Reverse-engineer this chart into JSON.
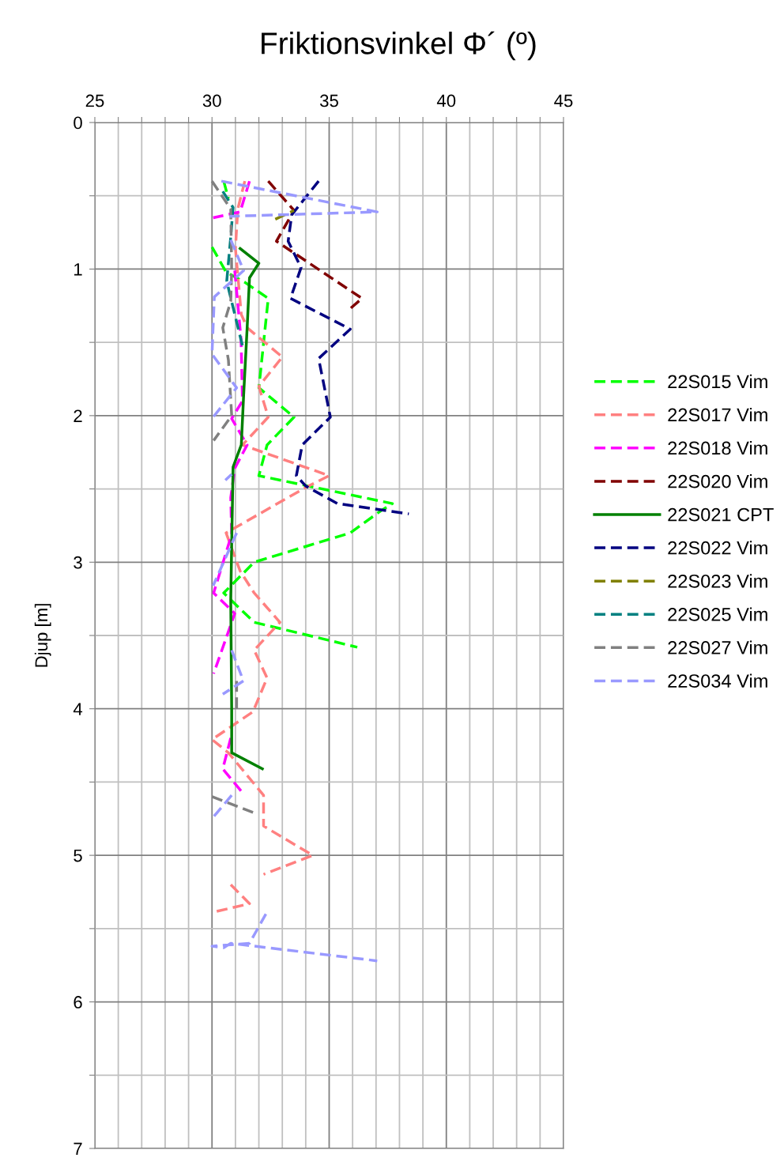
{
  "chart_data": {
    "type": "line",
    "title": "Friktionsvinkel Φ´ (º)",
    "ylabel": "Djup [m]",
    "xlim": [
      25,
      45
    ],
    "ylim": [
      7,
      0
    ],
    "xticks": [
      25,
      {
        "value": 26,
        "label": null
      },
      {
        "value": 27,
        "label": null
      },
      {
        "value": 28,
        "label": null
      },
      {
        "value": 29,
        "label": null
      },
      30,
      {
        "value": 31,
        "label": null
      },
      {
        "value": 32,
        "label": null
      },
      {
        "value": 33,
        "label": null
      },
      {
        "value": 34,
        "label": null
      },
      35,
      {
        "value": 36,
        "label": null
      },
      {
        "value": 37,
        "label": null
      },
      {
        "value": 38,
        "label": null
      },
      {
        "value": 39,
        "label": null
      },
      40,
      {
        "value": 41,
        "label": null
      },
      {
        "value": 42,
        "label": null
      },
      {
        "value": 43,
        "label": null
      },
      {
        "value": 44,
        "label": null
      },
      45
    ],
    "yticks": [
      0,
      {
        "value": 0.5,
        "label": null
      },
      1,
      {
        "value": 1.5,
        "label": null
      },
      2,
      {
        "value": 2.5,
        "label": null
      },
      3,
      {
        "value": 3.5,
        "label": null
      },
      4,
      {
        "value": 4.5,
        "label": null
      },
      5,
      {
        "value": 5.5,
        "label": null
      },
      6,
      {
        "value": 6.5,
        "label": null
      },
      7
    ],
    "grid": true,
    "legend": "right",
    "line_style": "dashed",
    "marker": "none",
    "series": [
      {
        "name": "22S015 Vim",
        "color": "#00ff00",
        "x": [
          30.5,
          30.7,
          null,
          30.0,
          30.6,
          31.4,
          32.4,
          32.0,
          33.5,
          32.35,
          32.0,
          37.7,
          37.2,
          35.9,
          31.8,
          30.5,
          31.8,
          36.2
        ],
        "values": [
          0.4,
          0.52,
          null,
          0.85,
          1.02,
          1.09,
          1.2,
          1.81,
          2.01,
          2.2,
          2.41,
          2.6,
          2.65,
          2.8,
          3.0,
          3.21,
          3.41,
          3.58
        ]
      },
      {
        "name": "22S017 Vim",
        "color": "#ff8080",
        "x": [
          31.4,
          31.1,
          31.0,
          31.1,
          31.25,
          31.5,
          33.0,
          32.0,
          32.4,
          31.3,
          35.0,
          34.0,
          30.6,
          31.2,
          31.8,
          32.9,
          31.8,
          32.35,
          31.75,
          30.0,
          30.7,
          32.2,
          32.2,
          34.3,
          32.2,
          null,
          30.8,
          31.6,
          30.0
        ],
        "values": [
          0.4,
          0.59,
          0.86,
          1.04,
          1.31,
          1.4,
          1.6,
          1.8,
          2.01,
          2.2,
          2.41,
          2.49,
          2.8,
          3.06,
          3.21,
          3.41,
          3.6,
          3.79,
          4.02,
          4.21,
          4.3,
          4.59,
          4.8,
          5.0,
          5.13,
          null,
          5.2,
          5.33,
          5.39
        ]
      },
      {
        "name": "22S018 Vim",
        "color": "#ff00ff",
        "x": [
          31.6,
          31.2,
          30.05,
          null,
          30.97,
          31.24,
          31.3,
          30.84,
          31.5,
          30.97,
          30.8,
          30.84,
          30.07,
          30.97,
          30.07,
          null,
          30.8,
          30.46,
          31.34
        ],
        "values": [
          0.4,
          0.61,
          0.65,
          null,
          1.01,
          1.48,
          1.9,
          2.02,
          2.2,
          2.36,
          2.56,
          2.81,
          3.21,
          3.35,
          3.76,
          null,
          4.2,
          4.41,
          4.58
        ]
      },
      {
        "name": "22S020 Vim",
        "color": "#800000",
        "x": [
          32.4,
          33.5,
          32.75,
          36.4,
          35.9
        ],
        "values": [
          0.4,
          0.6,
          0.81,
          1.2,
          1.27
        ]
      },
      {
        "name": "22S021 CPT",
        "color": "#008000",
        "line_style": "solid",
        "x": [
          31.2,
          32.0,
          31.6,
          31.5,
          31.35,
          31.25,
          30.9,
          30.84,
          30.8,
          30.84,
          30.84,
          32.15
        ],
        "values": [
          0.86,
          0.96,
          1.06,
          1.4,
          1.86,
          2.2,
          2.35,
          2.87,
          3.26,
          4.0,
          4.3,
          4.41
        ]
      },
      {
        "name": "22S022 Vim",
        "color": "#000080",
        "x": [
          34.55,
          33.4,
          33.25,
          33.8,
          33.35,
          35.9,
          34.55,
          35.05,
          33.85,
          33.6,
          34.0,
          35.35,
          38.4
        ],
        "values": [
          0.4,
          0.63,
          0.81,
          0.99,
          1.2,
          1.41,
          1.61,
          2.01,
          2.2,
          2.41,
          2.48,
          2.6,
          2.67
        ]
      },
      {
        "name": "22S023 Vim",
        "color": "#808000",
        "x": [
          32.7,
          33.5
        ],
        "values": [
          0.66,
          0.6
        ]
      },
      {
        "name": "22S025 Vim",
        "color": "#008080",
        "x": [
          30.46,
          30.9,
          30.8,
          30.63,
          30.73,
          31.34
        ],
        "values": [
          0.47,
          0.58,
          0.78,
          1.08,
          1.15,
          1.55
        ]
      },
      {
        "name": "22S027 Vim",
        "color": "#808080",
        "x": [
          30.0,
          30.8,
          30.84,
          30.8,
          30.46,
          30.7,
          30.84,
          30.07,
          null,
          31.05,
          31.05,
          null,
          30.0,
          31.8
        ],
        "values": [
          0.4,
          0.59,
          1.01,
          1.22,
          1.4,
          1.62,
          2.0,
          2.17,
          null,
          3.81,
          4.0,
          null,
          4.6,
          4.71
        ]
      },
      {
        "name": "22S034 Vim",
        "color": "#9999ff",
        "x": [
          30.4,
          37.05,
          30.75,
          null,
          30.8,
          31.35,
          30.1,
          30.0,
          31.05,
          30.05,
          null,
          30.84,
          30.57,
          null,
          31.05,
          30.05,
          null,
          30.84,
          31.34,
          30.46,
          null,
          30.84,
          30.0,
          null,
          32.3,
          31.6,
          30.0,
          30.5,
          30.8,
          37.05
        ],
        "values": [
          0.4,
          0.61,
          0.64,
          null,
          0.8,
          1.01,
          1.19,
          1.58,
          1.81,
          2.01,
          null,
          2.4,
          2.44,
          null,
          2.8,
          3.16,
          null,
          3.6,
          3.81,
          3.9,
          null,
          4.59,
          4.75,
          null,
          5.4,
          5.6,
          5.62,
          5.63,
          5.6,
          5.72
        ]
      }
    ]
  }
}
